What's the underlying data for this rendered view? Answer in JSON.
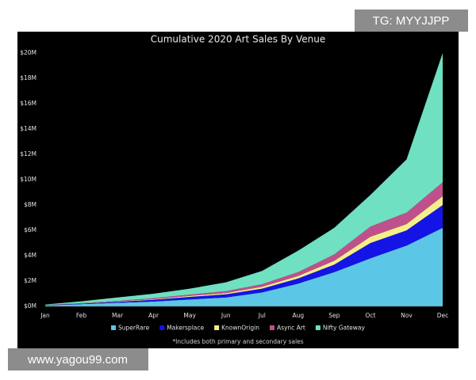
{
  "watermarks": [
    "TG: MYYJJPP",
    "www.yagou99.com"
  ],
  "chart_data": {
    "type": "area",
    "stacked": true,
    "title": "Cumulative 2020 Art Sales By Venue",
    "annotation": "*Includes both primary and secondary sales",
    "background": "#000000",
    "legend": "bottom",
    "grid": false,
    "categories": [
      "Jan",
      "Feb",
      "Mar",
      "Apr",
      "May",
      "Jun",
      "Jul",
      "Aug",
      "Sep",
      "Oct",
      "Nov",
      "Dec"
    ],
    "series": [
      {
        "name": "SuperRare",
        "color": "#5cc6e6",
        "values": [
          0.08,
          0.18,
          0.28,
          0.38,
          0.55,
          0.7,
          1.1,
          1.8,
          2.7,
          3.8,
          4.8,
          6.2
        ]
      },
      {
        "name": "Makersplace",
        "color": "#1414e6",
        "values": [
          0.02,
          0.04,
          0.08,
          0.14,
          0.2,
          0.25,
          0.3,
          0.4,
          0.6,
          1.2,
          1.2,
          1.8
        ]
      },
      {
        "name": "KnownOrigin",
        "color": "#f4ef8a",
        "values": [
          0.01,
          0.02,
          0.04,
          0.05,
          0.08,
          0.1,
          0.15,
          0.2,
          0.3,
          0.5,
          0.5,
          0.7
        ]
      },
      {
        "name": "Async Art",
        "color": "#c0508c",
        "values": [
          0.01,
          0.02,
          0.04,
          0.08,
          0.1,
          0.15,
          0.2,
          0.3,
          0.5,
          0.8,
          0.9,
          1.1
        ]
      },
      {
        "name": "Nifty Gateway",
        "color": "#6fe0c2",
        "values": [
          0.03,
          0.14,
          0.26,
          0.35,
          0.47,
          0.7,
          1.05,
          1.7,
          2.1,
          2.5,
          4.2,
          10.2
        ]
      }
    ],
    "ylim": [
      0,
      20
    ],
    "yticks": [
      {
        "value": 0,
        "label": "$0M"
      },
      {
        "value": 2,
        "label": "$2M"
      },
      {
        "value": 4,
        "label": "$4M"
      },
      {
        "value": 6,
        "label": "$6M"
      },
      {
        "value": 8,
        "label": "$8M"
      },
      {
        "value": 10,
        "label": "$10M"
      },
      {
        "value": 12,
        "label": "$12M"
      },
      {
        "value": 14,
        "label": "$14M"
      },
      {
        "value": 16,
        "label": "$16M"
      },
      {
        "value": 18,
        "label": "$18M"
      },
      {
        "value": 20,
        "label": "$20M"
      }
    ]
  }
}
